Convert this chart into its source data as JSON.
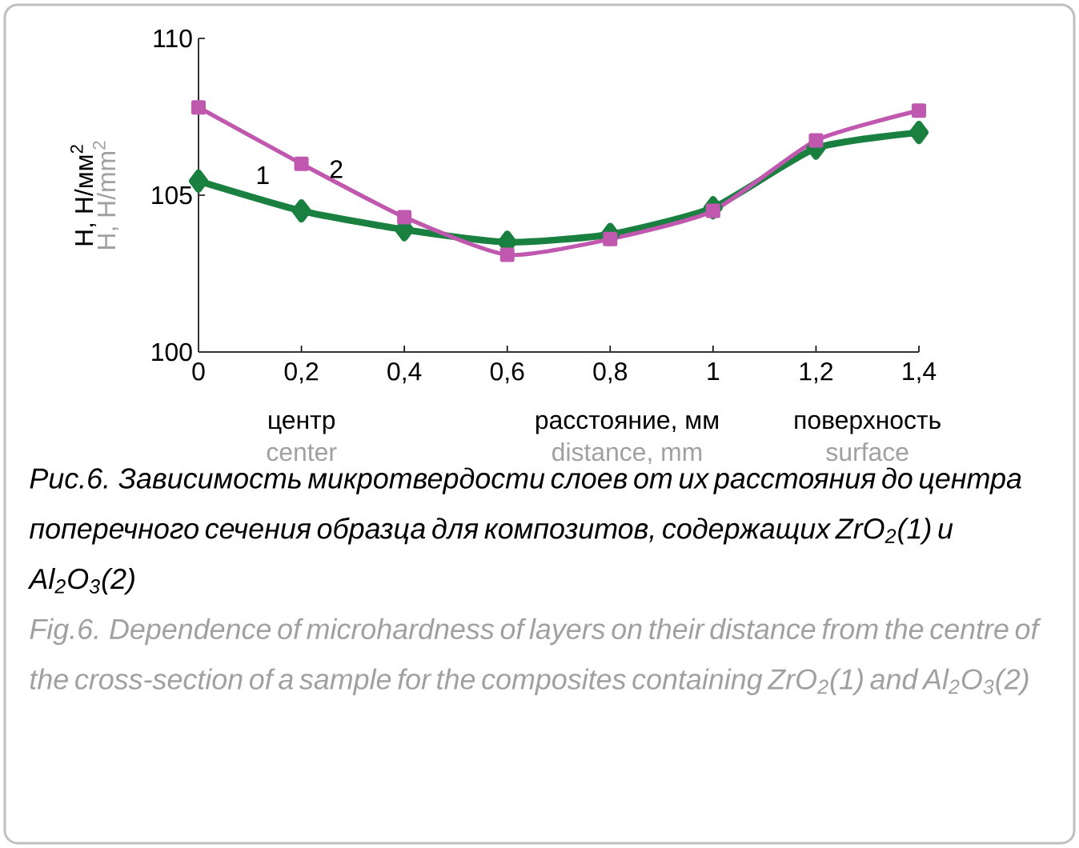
{
  "chart_data": {
    "type": "line",
    "title": "Рис.6. Зависимость микротвердости слоев от их расстояния до центра поперечного сечения образца для композитов, содержащих ZrO$_{2}$(1) и Al$_{2}$O$_{3}$(2)",
    "subtitle": "Fig.6. Dependence of microhardness of layers on their distance from the centre of the cross-section of a sample for the composites containing ZrO$_{2}$(1) and Al$_{2}$O$_{3}$(2)",
    "xlabel": "расстояние, мм",
    "ylabel": "Н, Н/мм$^{2}$",
    "annotations": [
      "центр",
      "center",
      "поверхность",
      "surface",
      "distance, mm",
      "H, H/mm$^{2}$"
    ],
    "x": [
      0,
      0.2,
      0.4,
      0.6,
      0.8,
      1,
      1.2,
      1.4
    ],
    "series": [
      {
        "name": "1",
        "color": "#1a8040",
        "marker": "diamond",
        "values": [
          105.45,
          104.5,
          103.9,
          103.5,
          103.75,
          104.6,
          106.5,
          107.0
        ]
      },
      {
        "name": "2",
        "color": "#c058b0",
        "marker": "square",
        "values": [
          107.8,
          106.0,
          104.3,
          103.1,
          103.6,
          104.5,
          106.75,
          107.7
        ]
      }
    ],
    "xlim": [
      0,
      1.4
    ],
    "ylim": [
      100,
      110
    ],
    "xticks": [
      0,
      {
        "value": 0.2,
        "label": "0,2"
      },
      {
        "value": 0.4,
        "label": "0,4"
      },
      {
        "value": 0.6,
        "label": "0,6"
      },
      {
        "value": 0.8,
        "label": "0,8"
      },
      1,
      {
        "value": 1.2,
        "label": "1,2"
      },
      {
        "value": 1.4,
        "label": "1,4"
      }
    ],
    "yticks": [
      100,
      105,
      110
    ],
    "grid": false
  }
}
